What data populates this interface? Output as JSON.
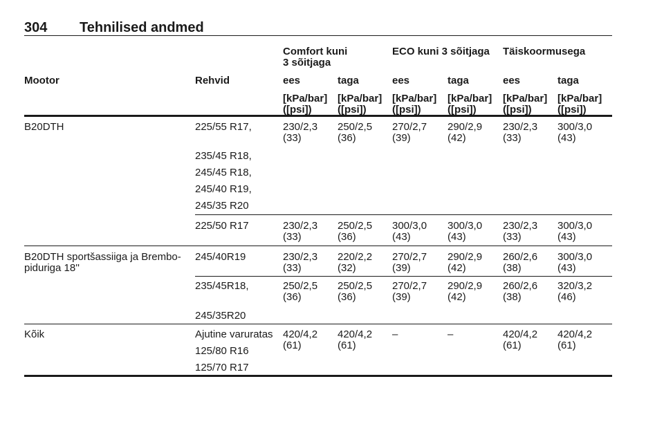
{
  "header": {
    "page_number": "304",
    "title": "Tehnilised andmed"
  },
  "table": {
    "group_headers": [
      [
        "Comfort kuni",
        "3 sõitjaga"
      ],
      [
        "ECO kuni 3 sõitjaga"
      ],
      [
        "Täiskoormusega"
      ]
    ],
    "column_headers": [
      "Mootor",
      "Rehvid",
      "ees",
      "taga",
      "ees",
      "taga",
      "ees",
      "taga"
    ],
    "unit_headers": [
      [
        "[kPa/bar]",
        "([psi])"
      ],
      [
        "[kPa/bar]",
        "([psi])"
      ],
      [
        "[kPa/bar]",
        "([psi])"
      ],
      [
        "[kPa/bar]",
        "([psi])"
      ],
      [
        "[kPa/bar]",
        "([psi])"
      ],
      [
        "[kPa/bar]",
        "([psi])"
      ]
    ],
    "rows": [
      {
        "engine": [
          "B20DTH"
        ],
        "tires": [
          "225/55 R17,",
          "235/45 R18,",
          "245/45 R18,",
          "245/40 R19,",
          "245/35 R20"
        ],
        "values": [
          [
            "230/2,3",
            "(33)"
          ],
          [
            "250/2,5",
            "(36)"
          ],
          [
            "270/2,7",
            "(39)"
          ],
          [
            "290/2,9",
            "(42)"
          ],
          [
            "230/2,3",
            "(33)"
          ],
          [
            "300/3,0",
            "(43)"
          ]
        ]
      },
      {
        "tires": [
          "225/50 R17"
        ],
        "values": [
          [
            "230/2,3",
            "(33)"
          ],
          [
            "250/2,5",
            "(36)"
          ],
          [
            "300/3,0",
            "(43)"
          ],
          [
            "300/3,0",
            "(43)"
          ],
          [
            "230/2,3",
            "(33)"
          ],
          [
            "300/3,0",
            "(43)"
          ]
        ]
      },
      {
        "engine": [
          "B20DTH sportšassiiga ja Brembo-",
          "piduriga 18''"
        ],
        "tires": [
          "245/40R19"
        ],
        "values": [
          [
            "230/2,3",
            "(33)"
          ],
          [
            "220/2,2",
            "(32)"
          ],
          [
            "270/2,7",
            "(39)"
          ],
          [
            "290/2,9",
            "(42)"
          ],
          [
            "260/2,6",
            "(38)"
          ],
          [
            "300/3,0",
            "(43)"
          ]
        ]
      },
      {
        "tires": [
          "235/45R18,",
          "245/35R20"
        ],
        "values": [
          [
            "250/2,5",
            "(36)"
          ],
          [
            "250/2,5",
            "(36)"
          ],
          [
            "270/2,7",
            "(39)"
          ],
          [
            "290/2,9",
            "(42)"
          ],
          [
            "260/2,6",
            "(38)"
          ],
          [
            "320/3,2",
            "(46)"
          ]
        ]
      },
      {
        "engine": [
          "Kõik"
        ],
        "tires": [
          "Ajutine varuratas",
          "125/80 R16",
          "125/70 R17"
        ],
        "values": [
          [
            "420/4,2",
            "(61)"
          ],
          [
            "420/4,2",
            "(61)"
          ],
          [
            "–"
          ],
          [
            "–"
          ],
          [
            "420/4,2",
            "(61)"
          ],
          [
            "420/4,2",
            "(61)"
          ]
        ]
      }
    ]
  }
}
